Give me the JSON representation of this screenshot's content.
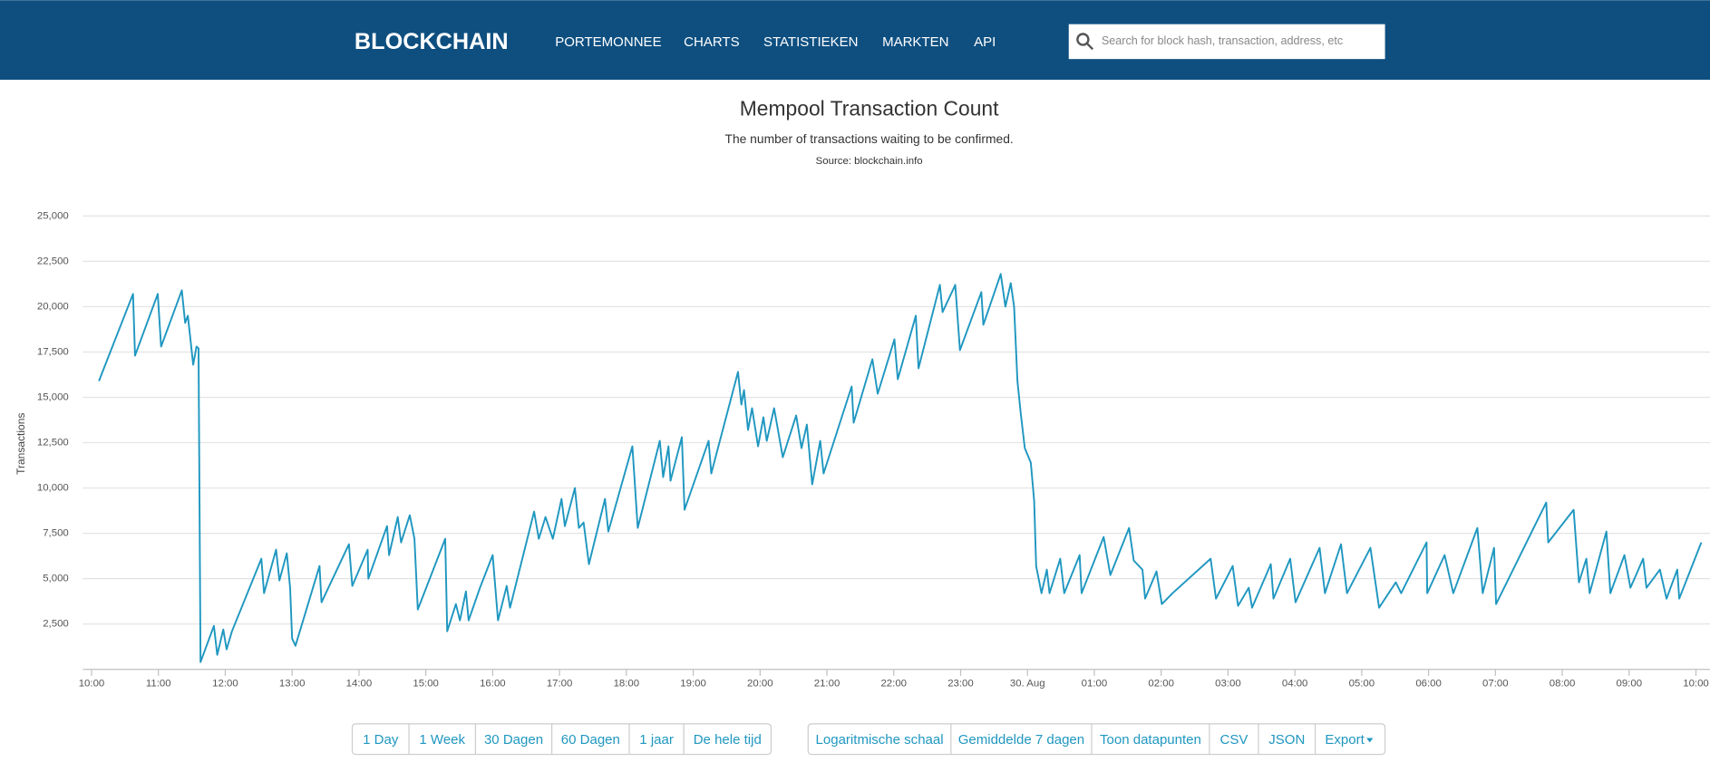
{
  "header": {
    "logo": "BLOCKCHAIN",
    "nav": [
      "PORTEMONNEE",
      "CHARTS",
      "STATISTIEKEN",
      "MARKTEN",
      "API"
    ],
    "search_placeholder": "Search for block hash, transaction, address, etc"
  },
  "chart_data": {
    "type": "line",
    "title": "Mempool Transaction Count",
    "subtitle": "The number of transactions waiting to be confirmed.",
    "source": "Source: blockchain.info",
    "y_label": "Transactions",
    "color": "#1f97c0",
    "grid": true,
    "x": [
      0.11,
      0.62,
      0.65,
      0.99,
      1.04,
      1.35,
      1.4,
      1.44,
      1.47,
      1.52,
      1.57,
      1.6,
      1.63,
      1.83,
      1.88,
      1.97,
      2.02,
      2.1,
      2.54,
      2.58,
      2.76,
      2.81,
      2.92,
      2.97,
      3.0,
      3.05,
      3.41,
      3.44,
      3.85,
      3.9,
      4.13,
      4.14,
      4.42,
      4.45,
      4.58,
      4.63,
      4.76,
      4.83,
      4.88,
      5.29,
      5.32,
      5.45,
      5.51,
      5.6,
      5.64,
      5.81,
      6.0,
      6.08,
      6.21,
      6.26,
      6.62,
      6.69,
      6.79,
      6.9,
      7.03,
      7.08,
      7.23,
      7.29,
      7.36,
      7.44,
      7.68,
      7.73,
      8.09,
      8.17,
      8.5,
      8.55,
      8.63,
      8.66,
      8.83,
      8.87,
      9.23,
      9.27,
      9.67,
      9.72,
      9.76,
      9.82,
      9.88,
      9.97,
      10.05,
      10.1,
      10.21,
      10.34,
      10.54,
      10.62,
      10.7,
      10.78,
      10.9,
      10.95,
      11.37,
      11.4,
      11.68,
      11.76,
      12.01,
      12.06,
      12.33,
      12.37,
      12.69,
      12.73,
      12.92,
      12.99,
      13.31,
      13.34,
      13.6,
      13.67,
      13.75,
      13.8,
      13.85,
      13.9,
      13.96,
      14.05,
      14.1,
      14.13,
      14.21,
      14.29,
      14.33,
      14.49,
      14.55,
      14.78,
      14.81,
      15.14,
      15.24,
      15.52,
      15.59,
      15.72,
      15.76,
      15.93,
      16.01,
      16.17,
      16.74,
      16.82,
      17.07,
      17.15,
      17.31,
      17.36,
      17.64,
      17.68,
      17.93,
      18.01,
      18.37,
      18.45,
      18.69,
      18.78,
      19.13,
      19.26,
      19.51,
      19.59,
      19.97,
      19.98,
      20.24,
      20.37,
      20.73,
      20.81,
      20.98,
      21.01,
      21.76,
      21.79,
      22.17,
      22.25,
      22.36,
      22.41,
      22.66,
      22.72,
      22.93,
      23.02,
      23.21,
      23.26,
      23.46,
      23.56,
      23.72,
      23.75,
      24.08
    ],
    "values": [
      15900,
      20700,
      17300,
      20700,
      17800,
      20900,
      19100,
      19500,
      18500,
      16800,
      17800,
      17700,
      400,
      2400,
      800,
      2200,
      1100,
      2100,
      6100,
      4200,
      6600,
      4900,
      6400,
      4500,
      1700,
      1300,
      5700,
      3700,
      6900,
      4600,
      6600,
      5000,
      7900,
      6300,
      8400,
      7000,
      8500,
      7200,
      3300,
      7200,
      2100,
      3600,
      2700,
      4300,
      2700,
      4500,
      6300,
      2700,
      4600,
      3400,
      8700,
      7200,
      8400,
      7200,
      9400,
      7900,
      10000,
      7800,
      8100,
      5800,
      9400,
      7600,
      12300,
      7800,
      12600,
      10600,
      12300,
      10400,
      12800,
      8800,
      12600,
      10800,
      16400,
      14600,
      15400,
      13200,
      14400,
      12300,
      13900,
      12600,
      14400,
      11700,
      14000,
      12200,
      13500,
      10200,
      12600,
      10800,
      15600,
      13600,
      17100,
      15200,
      18200,
      16000,
      19500,
      16600,
      21200,
      19700,
      21200,
      17600,
      20800,
      19000,
      21800,
      20000,
      21300,
      20000,
      15900,
      14100,
      12200,
      11400,
      9300,
      5700,
      4200,
      5500,
      4200,
      6100,
      4200,
      6300,
      4200,
      7300,
      5200,
      7800,
      6000,
      5500,
      3900,
      5400,
      3600,
      4200,
      6100,
      3900,
      5700,
      3500,
      4500,
      3400,
      5800,
      3900,
      6100,
      3700,
      6700,
      4200,
      6900,
      4200,
      6700,
      3400,
      4800,
      4200,
      7000,
      4200,
      6300,
      4200,
      7800,
      4200,
      6700,
      3600,
      9200,
      7000,
      8800,
      4800,
      6100,
      4200,
      7600,
      4200,
      6300,
      4500,
      6100,
      4500,
      5500,
      3900,
      5500,
      3900,
      7000
    ],
    "xlim": [
      -0.13,
      24.21
    ],
    "xticks": [
      {
        "value": 0,
        "label": "10:00"
      },
      {
        "value": 1,
        "label": "11:00"
      },
      {
        "value": 2,
        "label": "12:00"
      },
      {
        "value": 3,
        "label": "13:00"
      },
      {
        "value": 4,
        "label": "14:00"
      },
      {
        "value": 5,
        "label": "15:00"
      },
      {
        "value": 6,
        "label": "16:00"
      },
      {
        "value": 7,
        "label": "17:00"
      },
      {
        "value": 8,
        "label": "18:00"
      },
      {
        "value": 9,
        "label": "19:00"
      },
      {
        "value": 10,
        "label": "20:00"
      },
      {
        "value": 11,
        "label": "21:00"
      },
      {
        "value": 12,
        "label": "22:00"
      },
      {
        "value": 13,
        "label": "23:00"
      },
      {
        "value": 14,
        "label": "30. Aug"
      },
      {
        "value": 15,
        "label": "01:00"
      },
      {
        "value": 16,
        "label": "02:00"
      },
      {
        "value": 17,
        "label": "03:00"
      },
      {
        "value": 18,
        "label": "04:00"
      },
      {
        "value": 19,
        "label": "05:00"
      },
      {
        "value": 20,
        "label": "06:00"
      },
      {
        "value": 21,
        "label": "07:00"
      },
      {
        "value": 22,
        "label": "08:00"
      },
      {
        "value": 23,
        "label": "09:00"
      },
      {
        "value": 24,
        "label": "10:00"
      }
    ],
    "ylim": [
      0,
      25000
    ],
    "yticks": [
      {
        "value": 2500,
        "label": "2,500"
      },
      {
        "value": 5000,
        "label": "5,000"
      },
      {
        "value": 7500,
        "label": "7,500"
      },
      {
        "value": 10000,
        "label": "10,000"
      },
      {
        "value": 12500,
        "label": "12,500"
      },
      {
        "value": 15000,
        "label": "15,000"
      },
      {
        "value": 17500,
        "label": "17,500"
      },
      {
        "value": 20000,
        "label": "20,000"
      },
      {
        "value": 22500,
        "label": "22,500"
      },
      {
        "value": 25000,
        "label": "25,000"
      }
    ]
  },
  "buttons": {
    "range": [
      "1 Day",
      "1 Week",
      "30 Dagen",
      "60 Dagen",
      "1 jaar",
      "De hele tijd"
    ],
    "options": [
      "Logaritmische schaal",
      "Gemiddelde 7 dagen",
      "Toon datapunten",
      "CSV",
      "JSON",
      "Export"
    ]
  }
}
